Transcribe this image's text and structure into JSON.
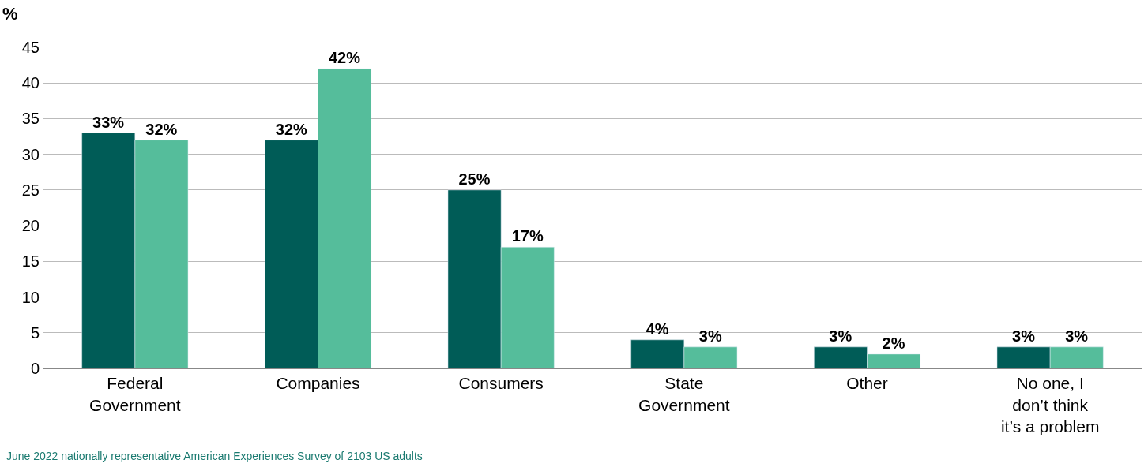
{
  "chart_data": {
    "type": "bar",
    "ylabel": "%",
    "categories": [
      "Federal Government",
      "Companies",
      "Consumers",
      "State Government",
      "Other",
      "No one, I don’t think it’s a problem"
    ],
    "series": [
      {
        "color": "#005c57",
        "values": [
          33,
          32,
          25,
          4,
          3,
          3
        ],
        "value_labels": [
          "33%",
          "32%",
          "25%",
          "4%",
          "3%",
          "3%"
        ]
      },
      {
        "color": "#55bd9b",
        "values": [
          32,
          42,
          17,
          3,
          2,
          3
        ],
        "value_labels": [
          "32%",
          "42%",
          "17%",
          "3%",
          "2%",
          "3%"
        ]
      }
    ],
    "ylim": [
      0,
      45
    ],
    "yticks": [
      0,
      5,
      10,
      15,
      20,
      25,
      30,
      35,
      40,
      45
    ],
    "grid": "y",
    "legend": false,
    "annotations": [
      "June 2022 nationally representative American Experiences Survey of 2103 US adults"
    ]
  }
}
